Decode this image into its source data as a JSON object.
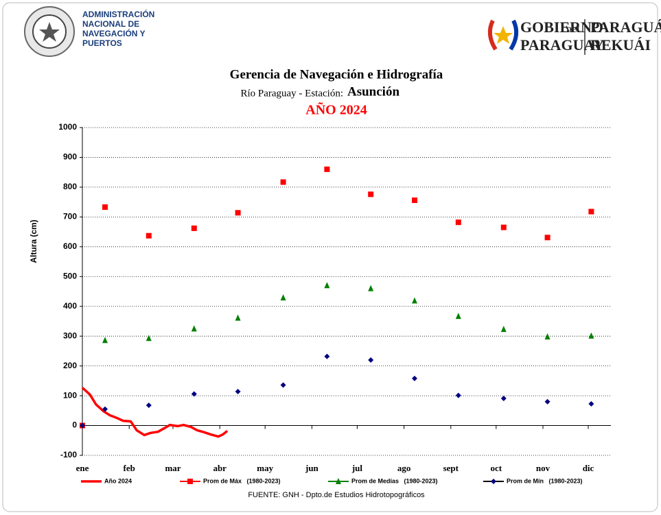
{
  "header": {
    "agency": [
      "ADMINISTRACIÓN",
      "NACIONAL DE",
      "NAVEGACIÓN Y",
      "PUERTOS"
    ],
    "government": {
      "line1": "GOBIERNO",
      "small": "DEL",
      "line2": "PARAGUAY",
      "guarani1": "PARAGUÁI",
      "guarani2": "REKUÁI"
    }
  },
  "chart_data": {
    "type": "scatter",
    "title": "Gerencia de Navegación e Hidrografía",
    "subtitle": "Río Paraguay -  Estación:",
    "station": "Asunción",
    "year_label": "AÑO 2024",
    "y_label": "Altura (cm)",
    "source": "FUENTE:  GNH - Dpto.de Estudios Hidrotopográficos",
    "xlim": [
      1,
      351
    ],
    "xticks": [
      {
        "value": 1,
        "label": "ene"
      },
      {
        "value": 32,
        "label": "feb"
      },
      {
        "value": 61,
        "label": "mar"
      },
      {
        "value": 92,
        "label": "abr"
      },
      {
        "value": 122,
        "label": "may"
      },
      {
        "value": 153,
        "label": "jun"
      },
      {
        "value": 183,
        "label": "jul"
      },
      {
        "value": 214,
        "label": "ago"
      },
      {
        "value": 245,
        "label": "sept"
      },
      {
        "value": 275,
        "label": "oct"
      },
      {
        "value": 306,
        "label": "nov"
      },
      {
        "value": 336,
        "label": "dic"
      }
    ],
    "ylim": [
      -100,
      1000
    ],
    "yticks": [
      -100,
      0,
      100,
      200,
      300,
      400,
      500,
      600,
      700,
      800,
      900,
      1000
    ],
    "grid": true,
    "series": [
      {
        "name": "Año 2024",
        "color": "#ff0000",
        "marker": "line",
        "x": [
          1,
          6,
          10,
          15,
          19,
          24,
          28,
          33,
          37,
          42,
          46,
          51,
          56,
          59,
          64,
          68,
          73,
          77,
          82,
          86,
          91,
          94,
          97
        ],
        "values": [
          127,
          104,
          71,
          48,
          35,
          25,
          16,
          14,
          -16,
          -32,
          -25,
          -21,
          -7,
          2,
          -2,
          2,
          -5,
          -16,
          -23,
          -30,
          -37,
          -30,
          -18
        ]
      },
      {
        "name": "Prom de Máx   (1980-2023)",
        "color": "#ff0000",
        "marker": "square",
        "x": [
          1,
          16,
          45,
          75,
          104,
          134,
          163,
          192,
          221,
          250,
          280,
          309,
          338
        ],
        "values": [
          0,
          733,
          637,
          662,
          714,
          817,
          860,
          776,
          756,
          682,
          665,
          631,
          718
        ]
      },
      {
        "name": "Prom de Medias   (1980-2023)",
        "color": "#008000",
        "marker": "triangle",
        "x": [
          16,
          45,
          75,
          104,
          134,
          163,
          192,
          221,
          250,
          280,
          309,
          338
        ],
        "values": [
          286,
          293,
          325,
          361,
          429,
          470,
          460,
          419,
          367,
          323,
          298,
          301
        ]
      },
      {
        "name": "Prom de Mín   (1980-2023)",
        "color": "#000080",
        "marker": "diamond",
        "x": [
          1,
          16,
          45,
          75,
          104,
          134,
          163,
          192,
          221,
          250,
          280,
          309,
          338
        ],
        "values": [
          0,
          55,
          68,
          106,
          114,
          136,
          232,
          220,
          158,
          101,
          91,
          80,
          73
        ]
      }
    ]
  }
}
